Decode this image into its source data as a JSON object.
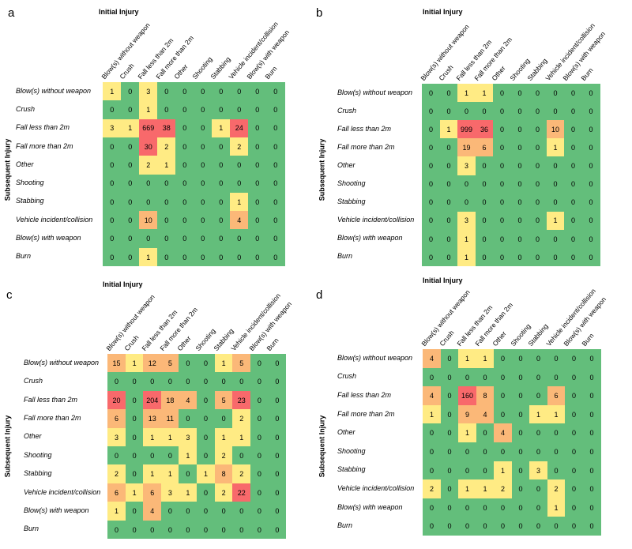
{
  "initial_label": "Initial Injury",
  "subsequent_label": "Subsequent Injury",
  "categories": [
    "Blow(s) without weapon",
    "Crush",
    "Fall less than 2m",
    "Fall more than 2m",
    "Other",
    "Shooting",
    "Stabbing",
    "Vehicle incident/collision",
    "Blow(s) with weapon",
    "Burn"
  ],
  "colors": {
    "green": "#63be7b",
    "yellow": "#ffeb84",
    "orange": "#fbb878",
    "red": "#f8696b"
  },
  "chart_data": [
    {
      "type": "heatmap",
      "panel": "a",
      "title": "Initial Injury",
      "xlabel": "Initial Injury",
      "ylabel": "Subsequent Injury",
      "matrix": [
        [
          1,
          0,
          3,
          0,
          0,
          0,
          0,
          0,
          0,
          0
        ],
        [
          0,
          0,
          1,
          0,
          0,
          0,
          0,
          0,
          0,
          0
        ],
        [
          3,
          1,
          669,
          38,
          0,
          0,
          1,
          24,
          0,
          0
        ],
        [
          0,
          0,
          30,
          2,
          0,
          0,
          0,
          2,
          0,
          0
        ],
        [
          0,
          0,
          2,
          1,
          0,
          0,
          0,
          0,
          0,
          0
        ],
        [
          0,
          0,
          0,
          0,
          0,
          0,
          0,
          0,
          0,
          0
        ],
        [
          0,
          0,
          0,
          0,
          0,
          0,
          0,
          1,
          0,
          0
        ],
        [
          0,
          0,
          10,
          0,
          0,
          0,
          0,
          4,
          0,
          0
        ],
        [
          0,
          0,
          0,
          0,
          0,
          0,
          0,
          0,
          0,
          0
        ],
        [
          0,
          0,
          1,
          0,
          0,
          0,
          0,
          0,
          0,
          0
        ]
      ]
    },
    {
      "type": "heatmap",
      "panel": "b",
      "title": "Initial Injury",
      "xlabel": "Initial Injury",
      "ylabel": "Subsequent Injury",
      "matrix": [
        [
          0,
          0,
          1,
          1,
          0,
          0,
          0,
          0,
          0,
          0
        ],
        [
          0,
          0,
          0,
          0,
          0,
          0,
          0,
          0,
          0,
          0
        ],
        [
          0,
          1,
          999,
          36,
          0,
          0,
          0,
          10,
          0,
          0
        ],
        [
          0,
          0,
          19,
          6,
          0,
          0,
          0,
          1,
          0,
          0
        ],
        [
          0,
          0,
          3,
          0,
          0,
          0,
          0,
          0,
          0,
          0
        ],
        [
          0,
          0,
          0,
          0,
          0,
          0,
          0,
          0,
          0,
          0
        ],
        [
          0,
          0,
          0,
          0,
          0,
          0,
          0,
          0,
          0,
          0
        ],
        [
          0,
          0,
          3,
          0,
          0,
          0,
          0,
          1,
          0,
          0
        ],
        [
          0,
          0,
          1,
          0,
          0,
          0,
          0,
          0,
          0,
          0
        ],
        [
          0,
          0,
          1,
          0,
          0,
          0,
          0,
          0,
          0,
          0
        ]
      ]
    },
    {
      "type": "heatmap",
      "panel": "c",
      "title": "Initial Injury",
      "xlabel": "Initial Injury",
      "ylabel": "Subsequent Injury",
      "matrix": [
        [
          15,
          1,
          12,
          5,
          0,
          0,
          1,
          5,
          0,
          0
        ],
        [
          0,
          0,
          0,
          0,
          0,
          0,
          0,
          0,
          0,
          0
        ],
        [
          20,
          0,
          204,
          18,
          4,
          0,
          5,
          23,
          0,
          0
        ],
        [
          6,
          0,
          13,
          11,
          0,
          0,
          0,
          2,
          0,
          0
        ],
        [
          3,
          0,
          1,
          1,
          3,
          0,
          1,
          1,
          0,
          0
        ],
        [
          0,
          0,
          0,
          0,
          1,
          0,
          2,
          0,
          0,
          0
        ],
        [
          2,
          0,
          1,
          1,
          0,
          1,
          8,
          2,
          0,
          0
        ],
        [
          6,
          1,
          6,
          3,
          1,
          0,
          2,
          22,
          0,
          0
        ],
        [
          1,
          0,
          4,
          0,
          0,
          0,
          0,
          0,
          0,
          0
        ],
        [
          0,
          0,
          0,
          0,
          0,
          0,
          0,
          0,
          0,
          0
        ]
      ]
    },
    {
      "type": "heatmap",
      "panel": "d",
      "title": "Initial Injury",
      "xlabel": "Initial Injury",
      "ylabel": "Subsequent Injury",
      "matrix": [
        [
          4,
          0,
          1,
          1,
          0,
          0,
          0,
          0,
          0,
          0
        ],
        [
          0,
          0,
          0,
          0,
          0,
          0,
          0,
          0,
          0,
          0
        ],
        [
          4,
          0,
          160,
          8,
          0,
          0,
          0,
          6,
          0,
          0
        ],
        [
          1,
          0,
          9,
          4,
          0,
          0,
          1,
          1,
          0,
          0
        ],
        [
          0,
          0,
          1,
          0,
          4,
          0,
          0,
          0,
          0,
          0
        ],
        [
          0,
          0,
          0,
          0,
          0,
          0,
          0,
          0,
          0,
          0
        ],
        [
          0,
          0,
          0,
          0,
          1,
          0,
          3,
          0,
          0,
          0
        ],
        [
          2,
          0,
          1,
          1,
          2,
          0,
          0,
          2,
          0,
          0
        ],
        [
          0,
          0,
          0,
          0,
          0,
          0,
          0,
          1,
          0,
          0
        ],
        [
          0,
          0,
          0,
          0,
          0,
          0,
          0,
          0,
          0,
          0
        ]
      ]
    }
  ]
}
